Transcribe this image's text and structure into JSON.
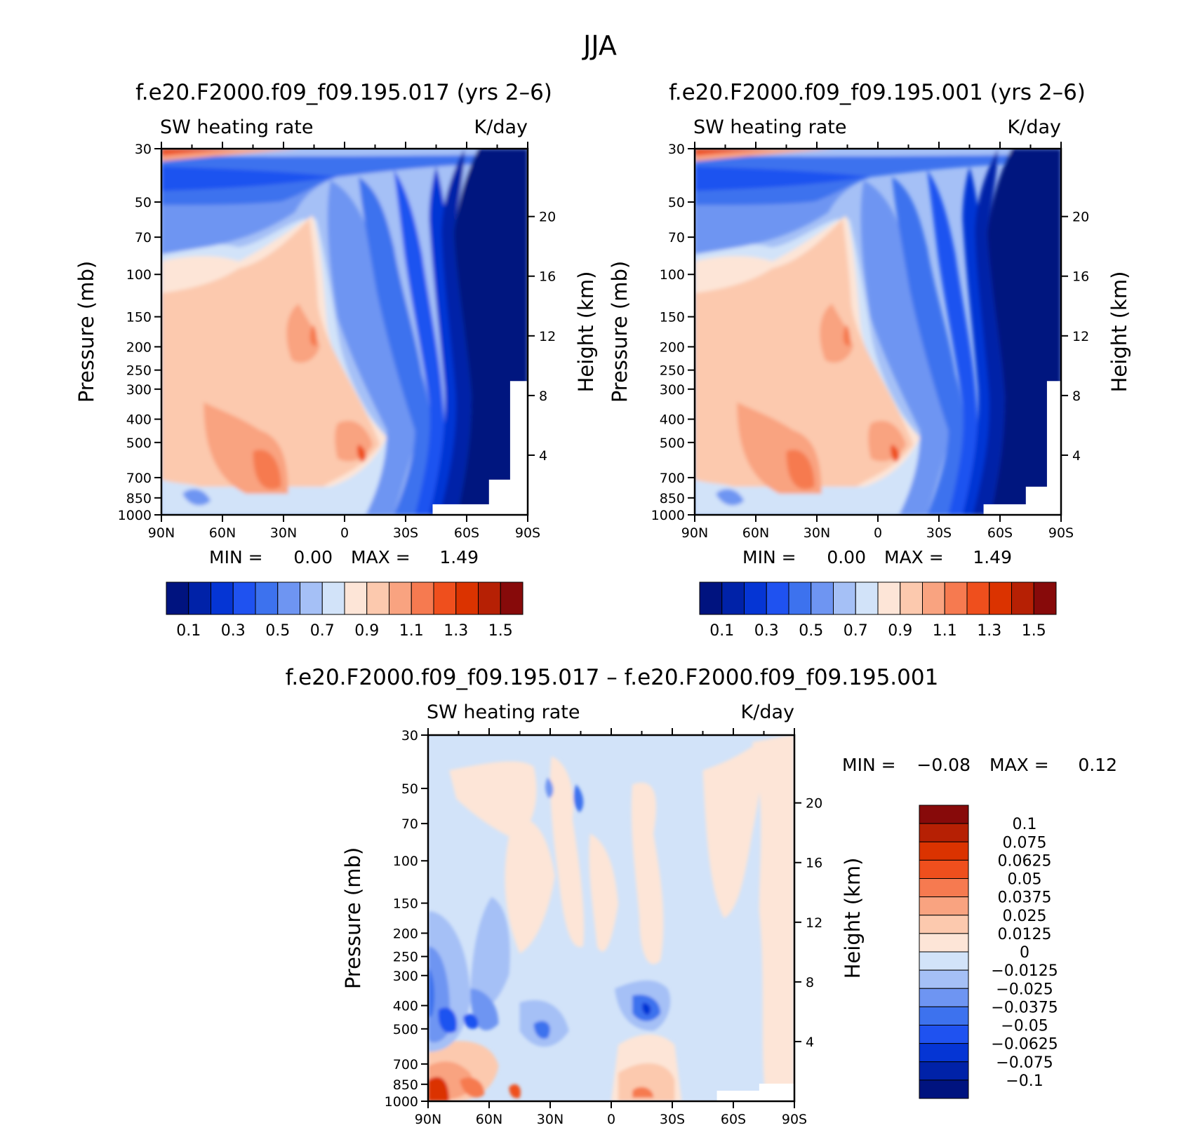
{
  "page": {
    "title": "JJA"
  },
  "colors": {
    "abs_scale": [
      "#00137f",
      "#0022a8",
      "#0535d4",
      "#1f52f0",
      "#3d72ee",
      "#6e95f2",
      "#a5c0f6",
      "#d2e3f9",
      "#fde5d7",
      "#fcc9ae",
      "#f9a380",
      "#f67a50",
      "#ef4f1d",
      "#db3300",
      "#b62004",
      "#870a0a"
    ],
    "diff_scale": [
      "#00137f",
      "#0022a8",
      "#0535d4",
      "#1f52f0",
      "#3d72ee",
      "#6e95f2",
      "#a5c0f6",
      "#d2e3f9",
      "#fde5d7",
      "#fcc9ae",
      "#f9a380",
      "#f67a50",
      "#ef4f1d",
      "#db3300",
      "#b62004",
      "#870a0a"
    ]
  },
  "panel_a": {
    "title": "f.e20.F2000.f09_f09.195.017 (yrs 2–6)",
    "variable": "SW heating rate",
    "units": "K/day",
    "min_label": "MIN =",
    "min_value": "0.00",
    "max_label": "MAX =",
    "max_value": "1.49",
    "colorbar_labels": [
      "0.1",
      "0.3",
      "0.5",
      "0.7",
      "0.9",
      "1.1",
      "1.3",
      "1.5"
    ]
  },
  "panel_b": {
    "title": "f.e20.F2000.f09_f09.195.001 (yrs 2–6)",
    "variable": "SW heating rate",
    "units": "K/day",
    "min_label": "MIN =",
    "min_value": "0.00",
    "max_label": "MAX =",
    "max_value": "1.49",
    "colorbar_labels": [
      "0.1",
      "0.3",
      "0.5",
      "0.7",
      "0.9",
      "1.1",
      "1.3",
      "1.5"
    ]
  },
  "panel_c": {
    "title": "f.e20.F2000.f09_f09.195.017 – f.e20.F2000.f09_f09.195.001",
    "variable": "SW heating rate",
    "units": "K/day",
    "min_label": "MIN =",
    "min_value": "−0.08",
    "max_label": "MAX =",
    "max_value": "0.12",
    "colorbar_labels": [
      "0.1",
      "0.075",
      "0.0625",
      "0.05",
      "0.0375",
      "0.025",
      "0.0125",
      "0",
      "−0.0125",
      "−0.025",
      "−0.0375",
      "−0.05",
      "−0.0625",
      "−0.075",
      "−0.1"
    ]
  },
  "axes": {
    "ylabel": "Pressure (mb)",
    "y2label": "Height (km)",
    "pressure_ticks": [
      "30",
      "50",
      "70",
      "100",
      "150",
      "200",
      "250",
      "300",
      "400",
      "500",
      "700",
      "850",
      "1000"
    ],
    "height_ticks": [
      "20",
      "16",
      "12",
      "8",
      "4"
    ],
    "lat_ticks": [
      "90N",
      "60N",
      "30N",
      "0",
      "30S",
      "60S",
      "90S"
    ]
  },
  "chart_data": [
    {
      "type": "heatmap",
      "title": "f.e20.F2000.f09_f09.195.017 (yrs 2–6)",
      "variable": "SW heating rate",
      "units": "K/day",
      "xlabel": "",
      "ylabel": "Pressure (mb)",
      "y2label": "Height (km)",
      "x": [
        "90N",
        "60N",
        "30N",
        "0",
        "30S",
        "60S",
        "90S"
      ],
      "y_pressure_mb": [
        30,
        50,
        70,
        100,
        150,
        200,
        250,
        300,
        400,
        500,
        700,
        850,
        1000
      ],
      "y_height_km": [
        20,
        16,
        12,
        8,
        4
      ],
      "min": 0.0,
      "max": 1.49,
      "levels": [
        0.1,
        0.2,
        0.3,
        0.4,
        0.5,
        0.6,
        0.7,
        0.8,
        0.9,
        1.0,
        1.1,
        1.2,
        1.3,
        1.4,
        1.5
      ],
      "y_scale": "log"
    },
    {
      "type": "heatmap",
      "title": "f.e20.F2000.f09_f09.195.001 (yrs 2–6)",
      "variable": "SW heating rate",
      "units": "K/day",
      "xlabel": "",
      "ylabel": "Pressure (mb)",
      "y2label": "Height (km)",
      "x": [
        "90N",
        "60N",
        "30N",
        "0",
        "30S",
        "60S",
        "90S"
      ],
      "y_pressure_mb": [
        30,
        50,
        70,
        100,
        150,
        200,
        250,
        300,
        400,
        500,
        700,
        850,
        1000
      ],
      "y_height_km": [
        20,
        16,
        12,
        8,
        4
      ],
      "min": 0.0,
      "max": 1.49,
      "levels": [
        0.1,
        0.2,
        0.3,
        0.4,
        0.5,
        0.6,
        0.7,
        0.8,
        0.9,
        1.0,
        1.1,
        1.2,
        1.3,
        1.4,
        1.5
      ],
      "y_scale": "log"
    },
    {
      "type": "heatmap",
      "title": "f.e20.F2000.f09_f09.195.017 – f.e20.F2000.f09_f09.195.001",
      "variable": "SW heating rate",
      "units": "K/day",
      "xlabel": "",
      "ylabel": "Pressure (mb)",
      "y2label": "Height (km)",
      "x": [
        "90N",
        "60N",
        "30N",
        "0",
        "30S",
        "60S",
        "90S"
      ],
      "y_pressure_mb": [
        30,
        50,
        70,
        100,
        150,
        200,
        250,
        300,
        400,
        500,
        700,
        850,
        1000
      ],
      "y_height_km": [
        20,
        16,
        12,
        8,
        4
      ],
      "min": -0.08,
      "max": 0.12,
      "levels": [
        -0.1,
        -0.075,
        -0.0625,
        -0.05,
        -0.0375,
        -0.025,
        -0.0125,
        0,
        0.0125,
        0.025,
        0.0375,
        0.05,
        0.0625,
        0.075,
        0.1
      ],
      "y_scale": "log"
    }
  ]
}
